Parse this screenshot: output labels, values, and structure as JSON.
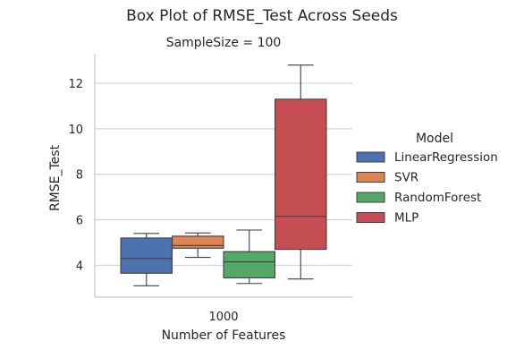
{
  "chart_data": {
    "type": "box",
    "title": "Box Plot of RMSE_Test Across Seeds",
    "subtitle": "SampleSize = 100",
    "xlabel": "Number of Features",
    "ylabel": "RMSE_Test",
    "categories": [
      "1000"
    ],
    "ylim": [
      2.6,
      13.3
    ],
    "yticks": [
      4,
      6,
      8,
      10,
      12
    ],
    "grid": "horizontal",
    "legend": {
      "title": "Model",
      "position": "right"
    },
    "series": [
      {
        "name": "LinearRegression",
        "color": "#4c72b0",
        "whisker_low": 3.1,
        "q1": 3.65,
        "median": 4.3,
        "q3": 5.2,
        "whisker_high": 5.4
      },
      {
        "name": "SVR",
        "color": "#dd8452",
        "whisker_low": 4.35,
        "q1": 4.75,
        "median": 4.87,
        "q3": 5.28,
        "whisker_high": 5.42
      },
      {
        "name": "RandomForest",
        "color": "#55a868",
        "whisker_low": 3.2,
        "q1": 3.45,
        "median": 4.15,
        "q3": 4.6,
        "whisker_high": 5.55
      },
      {
        "name": "MLP",
        "color": "#c44e52",
        "whisker_low": 3.4,
        "q1": 4.7,
        "median": 6.15,
        "q3": 11.3,
        "whisker_high": 12.8
      }
    ]
  }
}
